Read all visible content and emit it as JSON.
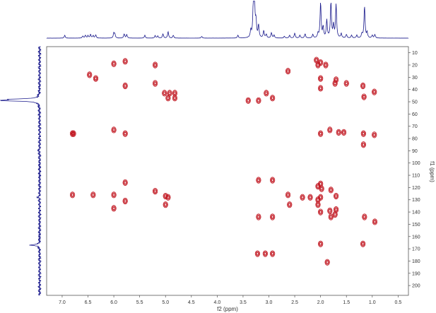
{
  "chart_data": {
    "type": "scatter",
    "subtype": "2D NMR HMBC-style contour plot",
    "xlabel": "f2 (ppm)",
    "ylabel": "f1 (ppm)",
    "xlim": [
      7.3,
      0.3
    ],
    "ylim": [
      5,
      208
    ],
    "x_ticks": [
      7.0,
      6.5,
      6.0,
      5.5,
      5.0,
      4.5,
      4.0,
      3.5,
      3.0,
      2.5,
      2.0,
      1.5,
      1.0,
      0.5
    ],
    "y_ticks": [
      10,
      20,
      30,
      40,
      50,
      60,
      70,
      80,
      90,
      100,
      110,
      120,
      130,
      140,
      150,
      160,
      170,
      180,
      190,
      200
    ],
    "grid": false,
    "colors": {
      "spectrum": "#1a1a8c",
      "peak": "#c0141e",
      "frame": "#555555"
    },
    "f2_projection": {
      "peaks": [
        [
          6.95,
          0.08
        ],
        [
          6.6,
          0.06
        ],
        [
          6.55,
          0.08
        ],
        [
          6.5,
          0.07
        ],
        [
          6.45,
          0.1
        ],
        [
          6.4,
          0.07
        ],
        [
          6.35,
          0.09
        ],
        [
          6.0,
          0.14
        ],
        [
          5.98,
          0.1
        ],
        [
          5.8,
          0.12
        ],
        [
          5.75,
          0.1
        ],
        [
          5.4,
          0.08
        ],
        [
          5.2,
          0.07
        ],
        [
          5.15,
          0.06
        ],
        [
          5.05,
          0.12
        ],
        [
          4.95,
          0.18
        ],
        [
          4.85,
          0.08
        ],
        [
          4.3,
          0.05
        ],
        [
          3.6,
          0.08
        ],
        [
          3.35,
          0.2
        ],
        [
          3.3,
          1.0
        ],
        [
          3.28,
          1.0
        ],
        [
          3.25,
          0.45
        ],
        [
          3.2,
          0.35
        ],
        [
          3.1,
          0.2
        ],
        [
          3.05,
          0.1
        ],
        [
          2.95,
          0.15
        ],
        [
          2.9,
          0.08
        ],
        [
          2.7,
          0.05
        ],
        [
          2.6,
          0.08
        ],
        [
          2.5,
          0.14
        ],
        [
          2.4,
          0.08
        ],
        [
          2.3,
          0.12
        ],
        [
          2.15,
          0.1
        ],
        [
          2.05,
          0.12
        ],
        [
          2.0,
          1.0
        ],
        [
          1.95,
          0.3
        ],
        [
          1.88,
          0.5
        ],
        [
          1.8,
          1.0
        ],
        [
          1.75,
          0.35
        ],
        [
          1.7,
          0.95
        ],
        [
          1.6,
          0.12
        ],
        [
          1.5,
          0.1
        ],
        [
          1.4,
          0.08
        ],
        [
          1.3,
          0.08
        ],
        [
          1.2,
          0.12
        ],
        [
          1.15,
          0.9
        ],
        [
          1.1,
          0.15
        ],
        [
          1.0,
          0.08
        ],
        [
          0.95,
          0.1
        ]
      ]
    },
    "f1_projection": {
      "peaks": [
        [
          49,
          1.0
        ],
        [
          48,
          0.6
        ],
        [
          167,
          0.25
        ],
        [
          128,
          0.05
        ],
        [
          90,
          0.04
        ]
      ]
    },
    "cross_peaks": [
      {
        "f2": 6.8,
        "f1": 76
      },
      {
        "f2": 6.78,
        "f1": 76
      },
      {
        "f2": 6.47,
        "f1": 28
      },
      {
        "f2": 6.35,
        "f1": 31
      },
      {
        "f2": 6.4,
        "f1": 126
      },
      {
        "f2": 6.8,
        "f1": 126
      },
      {
        "f2": 6.0,
        "f1": 19
      },
      {
        "f2": 6.0,
        "f1": 73
      },
      {
        "f2": 6.0,
        "f1": 126
      },
      {
        "f2": 6.0,
        "f1": 137
      },
      {
        "f2": 5.78,
        "f1": 17
      },
      {
        "f2": 5.78,
        "f1": 37
      },
      {
        "f2": 5.78,
        "f1": 76
      },
      {
        "f2": 5.78,
        "f1": 116
      },
      {
        "f2": 5.78,
        "f1": 131
      },
      {
        "f2": 5.2,
        "f1": 20
      },
      {
        "f2": 5.2,
        "f1": 35
      },
      {
        "f2": 5.2,
        "f1": 123
      },
      {
        "f2": 5.02,
        "f1": 43
      },
      {
        "f2": 4.92,
        "f1": 43
      },
      {
        "f2": 4.82,
        "f1": 43
      },
      {
        "f2": 4.95,
        "f1": 47
      },
      {
        "f2": 4.82,
        "f1": 47
      },
      {
        "f2": 5.0,
        "f1": 127
      },
      {
        "f2": 4.95,
        "f1": 128
      },
      {
        "f2": 5.0,
        "f1": 134
      },
      {
        "f2": 3.4,
        "f1": 49
      },
      {
        "f2": 3.2,
        "f1": 49
      },
      {
        "f2": 3.05,
        "f1": 43
      },
      {
        "f2": 2.93,
        "f1": 47
      },
      {
        "f2": 3.2,
        "f1": 114
      },
      {
        "f2": 2.93,
        "f1": 114
      },
      {
        "f2": 3.2,
        "f1": 144
      },
      {
        "f2": 2.93,
        "f1": 144
      },
      {
        "f2": 3.22,
        "f1": 174
      },
      {
        "f2": 3.07,
        "f1": 174
      },
      {
        "f2": 2.93,
        "f1": 174
      },
      {
        "f2": 2.63,
        "f1": 25
      },
      {
        "f2": 2.63,
        "f1": 126
      },
      {
        "f2": 2.6,
        "f1": 134
      },
      {
        "f2": 2.35,
        "f1": 128
      },
      {
        "f2": 2.2,
        "f1": 128
      },
      {
        "f2": 2.08,
        "f1": 16
      },
      {
        "f2": 2.05,
        "f1": 20
      },
      {
        "f2": 2.0,
        "f1": 18
      },
      {
        "f2": 1.9,
        "f1": 20
      },
      {
        "f2": 2.0,
        "f1": 31
      },
      {
        "f2": 2.0,
        "f1": 39
      },
      {
        "f2": 2.0,
        "f1": 76
      },
      {
        "f2": 2.05,
        "f1": 119
      },
      {
        "f2": 2.0,
        "f1": 117
      },
      {
        "f2": 1.98,
        "f1": 121
      },
      {
        "f2": 2.05,
        "f1": 130
      },
      {
        "f2": 2.0,
        "f1": 128
      },
      {
        "f2": 2.05,
        "f1": 134
      },
      {
        "f2": 2.0,
        "f1": 140
      },
      {
        "f2": 2.0,
        "f1": 166
      },
      {
        "f2": 1.87,
        "f1": 181
      },
      {
        "f2": 1.82,
        "f1": 73
      },
      {
        "f2": 1.8,
        "f1": 122
      },
      {
        "f2": 1.82,
        "f1": 139
      },
      {
        "f2": 1.8,
        "f1": 144
      },
      {
        "f2": 1.72,
        "f1": 35
      },
      {
        "f2": 1.7,
        "f1": 32
      },
      {
        "f2": 1.7,
        "f1": 127
      },
      {
        "f2": 1.7,
        "f1": 138
      },
      {
        "f2": 1.72,
        "f1": 142
      },
      {
        "f2": 1.65,
        "f1": 75
      },
      {
        "f2": 1.5,
        "f1": 35
      },
      {
        "f2": 1.55,
        "f1": 75
      },
      {
        "f2": 1.18,
        "f1": 37
      },
      {
        "f2": 1.16,
        "f1": 46
      },
      {
        "f2": 1.17,
        "f1": 76
      },
      {
        "f2": 1.17,
        "f1": 85
      },
      {
        "f2": 1.15,
        "f1": 144
      },
      {
        "f2": 1.18,
        "f1": 166
      },
      {
        "f2": 0.96,
        "f1": 42
      },
      {
        "f2": 0.96,
        "f1": 77
      },
      {
        "f2": 0.95,
        "f1": 148
      }
    ]
  }
}
